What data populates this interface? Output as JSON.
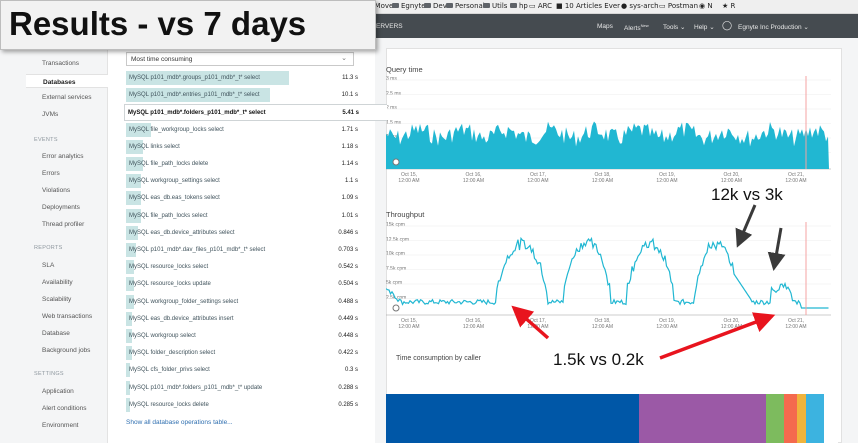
{
  "slide_title": "Results - vs 7 days",
  "browser_bookmarks": [
    {
      "label": "-Move",
      "type": "text"
    },
    {
      "label": "Egnyte",
      "type": "folder"
    },
    {
      "label": "Dev",
      "type": "folder"
    },
    {
      "label": "Personal",
      "type": "folder"
    },
    {
      "label": "Utils",
      "type": "folder"
    },
    {
      "label": "hp",
      "type": "folder"
    },
    {
      "label": "ARC",
      "type": "page"
    },
    {
      "label": "10 Articles Ever",
      "type": "page"
    },
    {
      "label": "sys-arch",
      "type": "github"
    },
    {
      "label": "Postman",
      "type": "page"
    },
    {
      "label": "N",
      "type": "page"
    },
    {
      "label": "R",
      "type": "page"
    }
  ],
  "app_header": {
    "section": "ERVERS",
    "maps": "Maps",
    "alerts": "Alerts",
    "alerts_badge": "New",
    "tools": "Tools",
    "help": "Help",
    "account": "Egnyte Inc Production"
  },
  "left_nav": {
    "items": [
      {
        "label": "Transactions",
        "active": false
      },
      {
        "label": "Databases",
        "active": true
      },
      {
        "label": "External services",
        "active": false
      },
      {
        "label": "JVMs",
        "active": false
      }
    ],
    "events_heading": "EVENTS",
    "events": [
      "Error analytics",
      "Errors",
      "Violations",
      "Deployments",
      "Thread profiler"
    ],
    "reports_heading": "REPORTS",
    "reports": [
      "SLA",
      "Availability",
      "Scalability",
      "Web transactions",
      "Database",
      "Background jobs"
    ],
    "settings_heading": "SETTINGS",
    "settings": [
      "Application",
      "Alert conditions",
      "Environment"
    ]
  },
  "sort_select": {
    "value": "Most time consuming"
  },
  "operations": [
    {
      "name": "MySQL p101_mdb*.groups_p101_mdb*_t* select",
      "value": "11.3 s",
      "fraction": 0.85
    },
    {
      "name": "MySQL p101_mdb*.entries_p101_mdb*_t* select",
      "value": "10.1 s",
      "fraction": 0.75
    },
    {
      "name": "MySQL p101_mdb*.folders_p101_mdb*_t* select",
      "value": "5.41 s",
      "fraction": 0.4,
      "selected": true
    },
    {
      "name": "MySQL file_workgroup_locks select",
      "value": "1.71 s",
      "fraction": 0.13
    },
    {
      "name": "MySQL links select",
      "value": "1.18 s",
      "fraction": 0.09
    },
    {
      "name": "MySQL file_path_locks delete",
      "value": "1.14 s",
      "fraction": 0.09
    },
    {
      "name": "MySQL workgroup_settings select",
      "value": "1.1 s",
      "fraction": 0.08
    },
    {
      "name": "MySQL eas_db.eas_tokens select",
      "value": "1.09 s",
      "fraction": 0.08
    },
    {
      "name": "MySQL file_path_locks select",
      "value": "1.01 s",
      "fraction": 0.08
    },
    {
      "name": "MySQL eas_db.device_attributes select",
      "value": "0.846 s",
      "fraction": 0.06
    },
    {
      "name": "MySQL p101_mdb*.dav_files_p101_mdb*_t* select",
      "value": "0.703 s",
      "fraction": 0.05
    },
    {
      "name": "MySQL resource_locks select",
      "value": "0.542 s",
      "fraction": 0.04
    },
    {
      "name": "MySQL resource_locks update",
      "value": "0.504 s",
      "fraction": 0.04
    },
    {
      "name": "MySQL workgroup_folder_settings select",
      "value": "0.488 s",
      "fraction": 0.04
    },
    {
      "name": "MySQL eas_db.device_attributes insert",
      "value": "0.449 s",
      "fraction": 0.03
    },
    {
      "name": "MySQL workgroup select",
      "value": "0.448 s",
      "fraction": 0.03
    },
    {
      "name": "MySQL folder_description select",
      "value": "0.422 s",
      "fraction": 0.03
    },
    {
      "name": "MySQL cfs_folder_privs select",
      "value": "0.3 s",
      "fraction": 0.02
    },
    {
      "name": "MySQL p101_mdb*.folders_p101_mdb*_t* update",
      "value": "0.288 s",
      "fraction": 0.02
    },
    {
      "name": "MySQL resource_locks delete",
      "value": "0.285 s",
      "fraction": 0.02
    }
  ],
  "show_all_link": "Show all database operations table...",
  "query_time": {
    "title": "Query time",
    "y_ticks": [
      "3 ms",
      "2.5 ms",
      "2 ms",
      "1.5 ms",
      "1 ms",
      "0.5 ms"
    ],
    "x_ticks": [
      {
        "date": "Oct 15,",
        "time": "12:00 AM"
      },
      {
        "date": "Oct 16,",
        "time": "12:00 AM"
      },
      {
        "date": "Oct 17,",
        "time": "12:00 AM"
      },
      {
        "date": "Oct 18,",
        "time": "12:00 AM"
      },
      {
        "date": "Oct 19,",
        "time": "12:00 AM"
      },
      {
        "date": "Oct 20,",
        "time": "12:00 AM"
      },
      {
        "date": "Oct 21,",
        "time": "12:00 AM"
      }
    ]
  },
  "throughput": {
    "title": "Throughput",
    "y_ticks": [
      "15k cpm",
      "12.5k cpm",
      "10k cpm",
      "7.5k cpm",
      "5k cpm",
      "2.5k cpm"
    ],
    "x_ticks": [
      {
        "date": "Oct 15,",
        "time": "12:00 AM"
      },
      {
        "date": "Oct 16,",
        "time": "12:00 AM"
      },
      {
        "date": "Oct 17,",
        "time": "12:00 AM"
      },
      {
        "date": "Oct 18,",
        "time": "12:00 AM"
      },
      {
        "date": "Oct 19,",
        "time": "12:00 AM"
      },
      {
        "date": "Oct 20,",
        "time": "12:00 AM"
      },
      {
        "date": "Oct 21,",
        "time": "12:00 AM"
      }
    ]
  },
  "time_consumption": {
    "title": "Time consumption by caller",
    "segments": [
      {
        "fraction": 0.56,
        "color": "#0057a7"
      },
      {
        "fraction": 0.28,
        "color": "#9b59a6"
      },
      {
        "fraction": 0.04,
        "color": "#7dbb5e"
      },
      {
        "fraction": 0.03,
        "color": "#f46a4e"
      },
      {
        "fraction": 0.02,
        "color": "#f0b43c"
      },
      {
        "fraction": 0.04,
        "color": "#3cb3e0"
      },
      {
        "fraction": 0.03,
        "color": "#ffffff"
      }
    ]
  },
  "annotations": {
    "peak": "12k vs 3k",
    "base": "1.5k vs 0.2k"
  },
  "colors": {
    "chart": "#21b7d2",
    "annotation_arrow_red": "#e8141e",
    "annotation_arrow_dark": "#3a3a3a",
    "marker_line": "#f4a3a3"
  }
}
